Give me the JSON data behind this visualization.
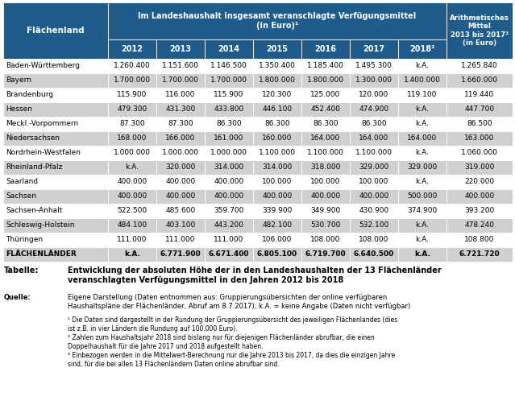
{
  "headers_col0": "Flächenland",
  "headers_main": "Im Landeshaushalt insgesamt veranschlagte Verfügungsmittel\n(in Euro)¹",
  "headers_years": [
    "2012",
    "2013",
    "2014",
    "2015",
    "2016",
    "2017",
    "2018²"
  ],
  "headers_last": "Arithmetisches\nMittel\n2013 bis 2017³\n(in Euro)",
  "rows": [
    [
      "Baden-Württemberg",
      "1.260.400",
      "1.151.600",
      "1.146.500",
      "1.350.400",
      "1.185.400",
      "1.495.300",
      "k.A.",
      "1.265.840"
    ],
    [
      "Bayern",
      "1.700.000",
      "1.700.000",
      "1.700.000",
      "1.800.000",
      "1.800.000",
      "1.300.000",
      "1.400.000",
      "1.660.000"
    ],
    [
      "Brandenburg",
      "115.900",
      "116.000",
      "115.900",
      "120.300",
      "125.000",
      "120.000",
      "119.100",
      "119.440"
    ],
    [
      "Hessen",
      "479.300",
      "431.300",
      "433.800",
      "446.100",
      "452.400",
      "474.900",
      "k.A.",
      "447.700"
    ],
    [
      "Meckl.-Vorpommern",
      "87.300",
      "87.300",
      "86.300",
      "86.300",
      "86.300",
      "86.300",
      "k.A.",
      "86.500"
    ],
    [
      "Niedersachsen",
      "168.000",
      "166.000",
      "161.000",
      "160.000",
      "164.000",
      "164.000",
      "164.000",
      "163.000"
    ],
    [
      "Nordrhein-Westfalen",
      "1.000.000",
      "1.000.000",
      "1.000.000",
      "1.100.000",
      "1.100.000",
      "1.100.000",
      "k.A.",
      "1.060.000"
    ],
    [
      "Rheinland-Pfalz",
      "k.A.",
      "320.000",
      "314.000",
      "314.000",
      "318.000",
      "329.000",
      "329.000",
      "319.000"
    ],
    [
      "Saarland",
      "400.000",
      "400.000",
      "400.000",
      "100.000",
      "100.000",
      "100.000",
      "k.A.",
      "220.000"
    ],
    [
      "Sachsen",
      "400.000",
      "400.000",
      "400.000",
      "400.000",
      "400.000",
      "400.000",
      "500.000",
      "400.000"
    ],
    [
      "Sachsen-Anhalt",
      "522.500",
      "485.600",
      "359.700",
      "339.900",
      "349.900",
      "430.900",
      "374.900",
      "393.200"
    ],
    [
      "Schleswig-Holstein",
      "484.100",
      "403.100",
      "443.200",
      "482.100",
      "530.700",
      "532.100",
      "k.A.",
      "478.240"
    ],
    [
      "Thüringen",
      "111.000",
      "111.000",
      "111.000",
      "106.000",
      "108.000",
      "108.000",
      "k.A.",
      "108.800"
    ],
    [
      "FLÄCHENLÄNDER",
      "k.A.",
      "6.771.900",
      "6.671.400",
      "6.805.100",
      "6.719.700",
      "6.640.500",
      "k.A.",
      "6.721.720"
    ]
  ],
  "footer_tabelle_label": "Tabelle:",
  "footer_tabelle_text": "Entwicklung der absoluten Höhe der in den Landeshaushalten der 13 Flächenländer\nveranschlagten Verfügungsmittel in den Jahren 2012 bis 2018",
  "footer_quelle_label": "Quelle:",
  "footer_quelle_text": "Eigene Darstellung (Daten entnommen aus: Gruppierungsübersichten der online verfügbaren\nHaushaltspläne der Flächenländer, Abruf am 8.7.2017); k.A. = keine Angabe (Daten nicht verfügbar)",
  "footer_fn1": "¹ Die Daten sind dargestellt in der Rundung der Gruppierungsübersicht des jeweiligen Flächenlandes (dies\nist z.B. in vier Ländern die Rundung auf 100.000 Euro).",
  "footer_fn2": "² Zahlen zum Haushaltsjahr 2018 sind bislang nur für diejenigen Flächenländer abrufbar, die einen\nDoppelhaushalt für die Jahre 2017 und 2018 aufgestellt haben.",
  "footer_fn3": "³ Einbezogen werden in die Mittelwert-Berechnung nur die Jahre 2013 bis 2017, da dies die einzigen Jahre\nsind, für die bei allen 13 Flächenländern Daten online abrufbar sind.",
  "header_bg": "#1F5C8B",
  "header_text_color": "#FFFFFF",
  "row_bg_odd": "#D0D0D0",
  "row_bg_even": "#FFFFFF",
  "border_color": "#FFFFFF",
  "text_color": "#000000"
}
